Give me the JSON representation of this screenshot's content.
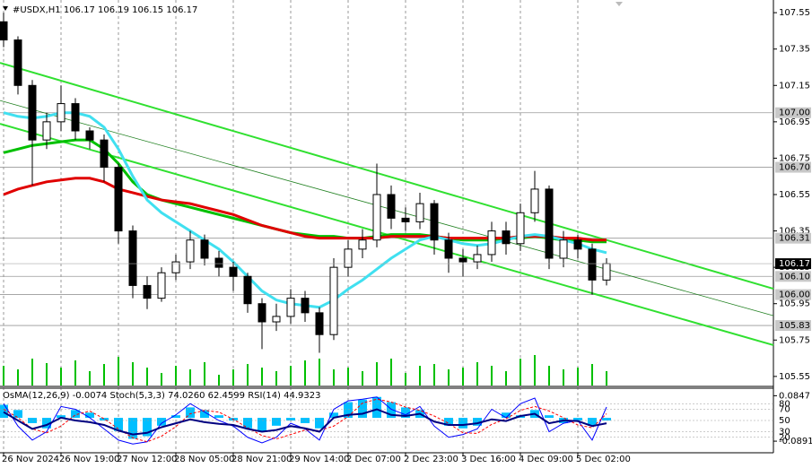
{
  "chart_data": {
    "type": "candlestick",
    "title": "#USDX,H1  106.17 106.19 106.15 106.17",
    "categories": [
      "26 Nov 2024",
      null,
      null,
      null,
      "26 Nov 19:00",
      null,
      null,
      null,
      "27 Nov 12:00",
      null,
      null,
      null,
      "28 Nov 05:00",
      null,
      null,
      null,
      "28 Nov 21:00",
      null,
      null,
      null,
      "29 Nov 14:00",
      null,
      null,
      null,
      "2 Dec 07:00",
      null,
      null,
      null,
      "2 Dec 23:00",
      null,
      null,
      null,
      "3 Dec 16:00",
      null,
      null,
      null,
      "4 Dec 09:00",
      null,
      null,
      null,
      "5 Dec 02:00",
      null,
      null
    ],
    "open": [
      107.5,
      107.4,
      107.15,
      106.85,
      106.95,
      107.05,
      106.9,
      106.85,
      106.7,
      106.35,
      106.05,
      105.98,
      106.12,
      106.18,
      106.3,
      106.2,
      106.15,
      106.1,
      105.95,
      105.85,
      105.88,
      105.98,
      105.9,
      105.78,
      106.15,
      106.25,
      106.3,
      106.55,
      106.42,
      106.4,
      106.5,
      106.3,
      106.2,
      106.18,
      106.22,
      106.35,
      106.28,
      106.45,
      106.58,
      106.2,
      106.3,
      106.25,
      106.08
    ],
    "high": [
      107.55,
      107.42,
      107.18,
      107.0,
      107.15,
      107.08,
      106.92,
      106.88,
      106.72,
      106.38,
      106.1,
      106.15,
      106.22,
      106.35,
      106.33,
      106.24,
      106.18,
      106.12,
      105.98,
      105.95,
      106.03,
      106.02,
      105.93,
      106.2,
      106.3,
      106.36,
      106.72,
      106.6,
      106.48,
      106.56,
      106.52,
      106.34,
      106.25,
      106.27,
      106.4,
      106.4,
      106.5,
      106.68,
      106.6,
      106.35,
      106.33,
      106.28,
      106.2
    ],
    "low": [
      107.36,
      107.1,
      106.6,
      106.8,
      106.9,
      106.85,
      106.8,
      106.62,
      106.28,
      105.98,
      105.92,
      105.96,
      106.08,
      106.14,
      106.16,
      106.1,
      106.02,
      105.9,
      105.7,
      105.8,
      105.84,
      105.85,
      105.68,
      105.75,
      106.1,
      106.2,
      106.26,
      106.36,
      106.35,
      106.36,
      106.22,
      106.12,
      106.1,
      106.14,
      106.18,
      106.22,
      106.24,
      106.4,
      106.14,
      106.15,
      106.2,
      106.0,
      106.05
    ],
    "close": [
      107.4,
      107.15,
      106.85,
      106.95,
      107.05,
      106.9,
      106.85,
      106.7,
      106.35,
      106.05,
      105.98,
      106.12,
      106.18,
      106.3,
      106.2,
      106.15,
      106.1,
      105.95,
      105.85,
      105.88,
      105.98,
      105.9,
      105.78,
      106.15,
      106.25,
      106.3,
      106.55,
      106.42,
      106.4,
      106.5,
      106.3,
      106.2,
      106.18,
      106.22,
      106.35,
      106.28,
      106.45,
      106.58,
      106.2,
      106.3,
      106.25,
      106.08,
      106.17
    ],
    "volume": [
      22,
      18,
      30,
      25,
      20,
      28,
      16,
      24,
      32,
      26,
      20,
      14,
      22,
      18,
      26,
      12,
      18,
      24,
      20,
      16,
      22,
      28,
      30,
      18,
      20,
      16,
      26,
      30,
      14,
      22,
      24,
      18,
      20,
      26,
      22,
      16,
      30,
      34,
      22,
      18,
      20,
      24,
      16
    ],
    "volume_color": "#00c000",
    "moving_averages": [
      {
        "color": "#00c000",
        "values": [
          106.78,
          106.8,
          106.82,
          106.83,
          106.84,
          106.85,
          106.85,
          106.8,
          106.72,
          106.62,
          106.55,
          106.52,
          106.5,
          106.48,
          106.46,
          106.44,
          106.42,
          106.4,
          106.38,
          106.36,
          106.34,
          106.33,
          106.32,
          106.32,
          106.31,
          106.31,
          106.32,
          106.33,
          106.33,
          106.33,
          106.32,
          106.31,
          106.3,
          106.3,
          106.3,
          106.31,
          106.31,
          106.32,
          106.31,
          106.3,
          106.3,
          106.29,
          106.29
        ]
      },
      {
        "color": "#e00000",
        "values": [
          106.55,
          106.58,
          106.6,
          106.62,
          106.63,
          106.64,
          106.64,
          106.62,
          106.58,
          106.56,
          106.54,
          106.52,
          106.51,
          106.5,
          106.48,
          106.46,
          106.44,
          106.41,
          106.38,
          106.36,
          106.34,
          106.32,
          106.31,
          106.31,
          106.31,
          106.31,
          106.31,
          106.32,
          106.32,
          106.32,
          106.32,
          106.31,
          106.31,
          106.31,
          106.31,
          106.31,
          106.32,
          106.32,
          106.32,
          106.31,
          106.31,
          106.3,
          106.3
        ]
      },
      {
        "color": "#40e0f0",
        "values": [
          107.0,
          106.98,
          106.97,
          106.98,
          107.0,
          107.0,
          106.98,
          106.92,
          106.8,
          106.65,
          106.52,
          106.45,
          106.4,
          106.35,
          106.3,
          106.25,
          106.18,
          106.1,
          106.02,
          105.97,
          105.95,
          105.94,
          105.93,
          105.97,
          106.03,
          106.08,
          106.14,
          106.2,
          106.25,
          106.3,
          106.32,
          106.3,
          106.28,
          106.27,
          106.28,
          106.3,
          106.32,
          106.33,
          106.32,
          106.3,
          106.28,
          106.25,
          106.23
        ]
      }
    ],
    "trend_lines": [
      {
        "color": "#30e030",
        "values": [
          107.274,
          106.032
        ]
      },
      {
        "color": "#30e030",
        "values": [
          106.939,
          105.722
        ]
      },
      {
        "color": "#208020",
        "values": [
          107.067,
          105.884
        ]
      }
    ],
    "levels": [
      {
        "value": 107,
        "label": "107.00"
      },
      {
        "value": 106.7,
        "label": "106.70"
      },
      106.31,
      {
        "value": 106.1,
        "label": "106.10"
      },
      {
        "value": 106,
        "label": "106.00"
      },
      105.83
    ],
    "last_price": 106.17,
    "ylim": [
      105.5,
      107.6
    ],
    "yticks": [
      107.55,
      107.35,
      107.15,
      106.95,
      106.75,
      106.55,
      106.35,
      106.15,
      105.95,
      105.75,
      105.55
    ],
    "grid": true,
    "indicator": {
      "label": "OsMA(12,26,9) -0.0074  Stoch(5,3,3) 74.0260 62.4599  RSI(14) 44.9323",
      "osma": [
        0.05,
        0.03,
        -0.02,
        -0.04,
        0.01,
        0.03,
        0.02,
        -0.01,
        -0.05,
        -0.08,
        -0.07,
        -0.03,
        0.01,
        0.04,
        0.03,
        0.01,
        -0.01,
        -0.04,
        -0.05,
        -0.03,
        -0.01,
        -0.02,
        -0.04,
        0.02,
        0.06,
        0.07,
        0.08,
        0.06,
        0.04,
        0.03,
        0.0,
        -0.03,
        -0.04,
        -0.03,
        0.0,
        0.02,
        0.01,
        0.03,
        0.01,
        -0.02,
        -0.01,
        -0.03,
        -0.01
      ],
      "osma_color": "#00bfff",
      "osma_ylim": [
        -0.13,
        0.11
      ],
      "osma_ticks": [
        0.0847,
        -0.0891
      ],
      "stoch_main": [
        80,
        40,
        15,
        30,
        75,
        70,
        55,
        35,
        15,
        8,
        12,
        45,
        60,
        80,
        65,
        50,
        40,
        20,
        10,
        20,
        45,
        35,
        15,
        70,
        85,
        88,
        92,
        70,
        60,
        75,
        40,
        20,
        25,
        35,
        70,
        55,
        80,
        90,
        30,
        45,
        50,
        15,
        74
      ],
      "stoch_signal": [
        70,
        55,
        35,
        28,
        40,
        60,
        67,
        53,
        35,
        19,
        12,
        22,
        39,
        62,
        68,
        65,
        52,
        37,
        23,
        17,
        25,
        33,
        32,
        40,
        57,
        81,
        88,
        83,
        74,
        68,
        58,
        45,
        28,
        27,
        43,
        53,
        68,
        75,
        67,
        55,
        42,
        37,
        62
      ],
      "rsi": [
        65,
        50,
        35,
        42,
        55,
        50,
        47,
        42,
        32,
        25,
        28,
        38,
        45,
        52,
        47,
        44,
        42,
        35,
        30,
        33,
        40,
        36,
        30,
        55,
        60,
        62,
        70,
        60,
        58,
        62,
        48,
        42,
        42,
        45,
        52,
        49,
        58,
        62,
        45,
        50,
        49,
        40,
        45
      ],
      "stoch_main_color": "#0000ff",
      "stoch_signal_color": "#ff0000",
      "rsi_color": "#000080",
      "stoch_ylim": [
        -6,
        106
      ],
      "stoch_ticks": [
        80,
        70,
        50,
        30,
        20
      ]
    }
  }
}
